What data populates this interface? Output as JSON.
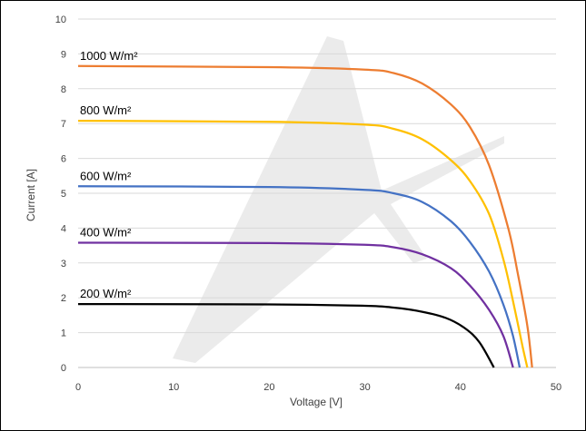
{
  "chart_data": {
    "type": "line",
    "title": "",
    "xlabel": "Voltage [V]",
    "ylabel": "Current [A]",
    "xlim": [
      0,
      50
    ],
    "ylim": [
      0,
      10
    ],
    "x_ticks": [
      "0",
      "10",
      "20",
      "30",
      "40",
      "50"
    ],
    "y_ticks": [
      "0",
      "1",
      "2",
      "3",
      "4",
      "5",
      "6",
      "7",
      "8",
      "9",
      "10"
    ],
    "grid": "horizontal",
    "legend": "inline labels",
    "series": [
      {
        "name": "1000 W/m²",
        "color": "#ED7D31",
        "points": [
          [
            0,
            8.65
          ],
          [
            20,
            8.62
          ],
          [
            30,
            8.55
          ],
          [
            33,
            8.45
          ],
          [
            36,
            8.15
          ],
          [
            39,
            7.55
          ],
          [
            41,
            6.9
          ],
          [
            43,
            5.8
          ],
          [
            45,
            4.0
          ],
          [
            46,
            2.7
          ],
          [
            47,
            1.2
          ],
          [
            47.5,
            0
          ]
        ]
      },
      {
        "name": "800 W/m²",
        "color": "#FFC000",
        "points": [
          [
            0,
            7.08
          ],
          [
            20,
            7.05
          ],
          [
            30,
            6.97
          ],
          [
            33,
            6.85
          ],
          [
            36,
            6.55
          ],
          [
            39,
            5.95
          ],
          [
            41,
            5.35
          ],
          [
            43,
            4.4
          ],
          [
            44.5,
            3.1
          ],
          [
            45.5,
            1.9
          ],
          [
            46.5,
            0.6
          ],
          [
            47,
            0
          ]
        ]
      },
      {
        "name": "600 W/m²",
        "color": "#4472C4",
        "points": [
          [
            0,
            5.2
          ],
          [
            20,
            5.18
          ],
          [
            30,
            5.1
          ],
          [
            33,
            5.0
          ],
          [
            36,
            4.75
          ],
          [
            39,
            4.2
          ],
          [
            41,
            3.6
          ],
          [
            43,
            2.75
          ],
          [
            44.5,
            1.8
          ],
          [
            45.5,
            0.9
          ],
          [
            46.2,
            0
          ]
        ]
      },
      {
        "name": "400 W/m²",
        "color": "#7030A0",
        "points": [
          [
            0,
            3.58
          ],
          [
            20,
            3.57
          ],
          [
            30,
            3.52
          ],
          [
            33,
            3.45
          ],
          [
            36,
            3.25
          ],
          [
            39,
            2.85
          ],
          [
            41,
            2.35
          ],
          [
            43,
            1.65
          ],
          [
            44.5,
            0.9
          ],
          [
            45.5,
            0
          ]
        ]
      },
      {
        "name": "200 W/m²",
        "color": "#000000",
        "points": [
          [
            0,
            1.82
          ],
          [
            20,
            1.81
          ],
          [
            30,
            1.77
          ],
          [
            33,
            1.72
          ],
          [
            36,
            1.6
          ],
          [
            38.5,
            1.42
          ],
          [
            40.5,
            1.12
          ],
          [
            42,
            0.72
          ],
          [
            43.5,
            0
          ]
        ]
      }
    ]
  }
}
